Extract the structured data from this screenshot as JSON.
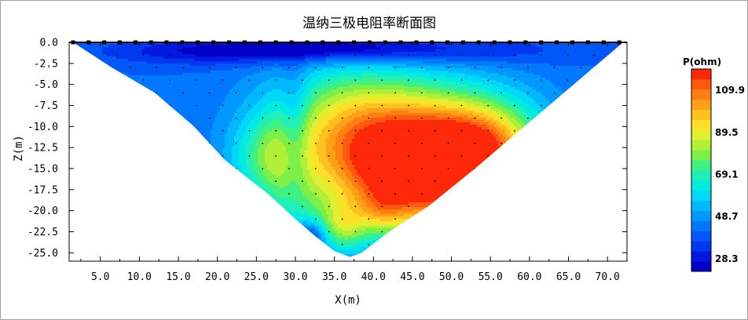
{
  "chart_data": {
    "type": "heatmap",
    "title": "温纳三极电阻率断面图",
    "xlabel": "X(m)",
    "ylabel": "Z(m)",
    "xlim": [
      1,
      72.5
    ],
    "ylim": [
      -26,
      0
    ],
    "x_ticks": [
      5,
      10,
      15,
      20,
      25,
      30,
      35,
      40,
      45,
      50,
      55,
      60,
      65,
      70
    ],
    "x_tick_labels": [
      "5.0",
      "10.0",
      "15.0",
      "20.0",
      "25.0",
      "30.0",
      "35.0",
      "40.0",
      "45.0",
      "50.0",
      "55.0",
      "60.0",
      "65.0",
      "70.0"
    ],
    "y_ticks": [
      0,
      -2.5,
      -5,
      -7.5,
      -10,
      -12.5,
      -15,
      -17.5,
      -20,
      -22.5,
      -25
    ],
    "y_tick_labels": [
      "0.0",
      "-2.5",
      "-5.0",
      "-7.5",
      "-10.0",
      "-12.5",
      "-15.0",
      "-17.5",
      "-20.0",
      "-22.5",
      "-25.0"
    ],
    "section_outline": [
      [
        1.5,
        0
      ],
      [
        72,
        0
      ],
      [
        53,
        -15
      ],
      [
        47,
        -19.5
      ],
      [
        42,
        -22.5
      ],
      [
        38.5,
        -25
      ],
      [
        37,
        -25.5
      ],
      [
        35,
        -24.8
      ],
      [
        32.5,
        -23
      ],
      [
        30,
        -21
      ],
      [
        26.5,
        -18
      ],
      [
        21,
        -14
      ],
      [
        17,
        -10
      ],
      [
        12,
        -6
      ],
      [
        6.5,
        -3
      ],
      [
        1.5,
        0
      ]
    ],
    "resistivity_field": {
      "background": 42,
      "blobs": [
        [
          47,
          -16,
          12,
          7,
          64
        ],
        [
          44,
          -12,
          14,
          8,
          40
        ],
        [
          54,
          -12,
          7,
          5,
          30
        ],
        [
          36,
          -9,
          10,
          7,
          22
        ],
        [
          27,
          -14,
          5,
          5,
          24
        ],
        [
          30,
          -20,
          4,
          4,
          12
        ],
        [
          36,
          -22,
          3,
          3,
          24
        ],
        [
          41,
          -20,
          3,
          2.5,
          14
        ],
        [
          32,
          -23,
          2,
          1.8,
          -22
        ],
        [
          30,
          -11,
          1.8,
          8,
          -14
        ],
        [
          20,
          -1,
          14,
          1.6,
          -16
        ],
        [
          45,
          -1,
          18,
          1.8,
          -16
        ],
        [
          35,
          -0.6,
          10,
          1.2,
          -12
        ]
      ]
    },
    "colorbar": {
      "title": "P(ohm)",
      "range": [
        22,
        120
      ],
      "colors": [
        "#0000c8",
        "#0018e0",
        "#0038f0",
        "#0058f8",
        "#0078ff",
        "#0098ff",
        "#00b8ff",
        "#00d8f8",
        "#00ece0",
        "#20f0b8",
        "#40f080",
        "#7cf048",
        "#b0f038",
        "#e0f030",
        "#ffe028",
        "#ffc020",
        "#ffa018",
        "#ff8010",
        "#ff5a10",
        "#ff2808"
      ],
      "labels": [
        "28.3",
        "48.7",
        "69.1",
        "89.5",
        "109.9"
      ],
      "label_values": [
        28.3,
        48.7,
        69.1,
        89.5,
        109.9
      ]
    },
    "electrodes_x": [
      1.5,
      3.5,
      5.5,
      7.5,
      9.5,
      11.5,
      13.5,
      15.5,
      17.5,
      19.5,
      21.5,
      23.5,
      25.5,
      27.5,
      29.5,
      31.5,
      33.5,
      35.5,
      37.5,
      39.5,
      41.5,
      43.5,
      45.5,
      47.5,
      49.5,
      51.5,
      53.5,
      55.5,
      57.5,
      59.5,
      61.5,
      63.5,
      65.5,
      67.5,
      69.5,
      71.5
    ],
    "grid": false
  }
}
